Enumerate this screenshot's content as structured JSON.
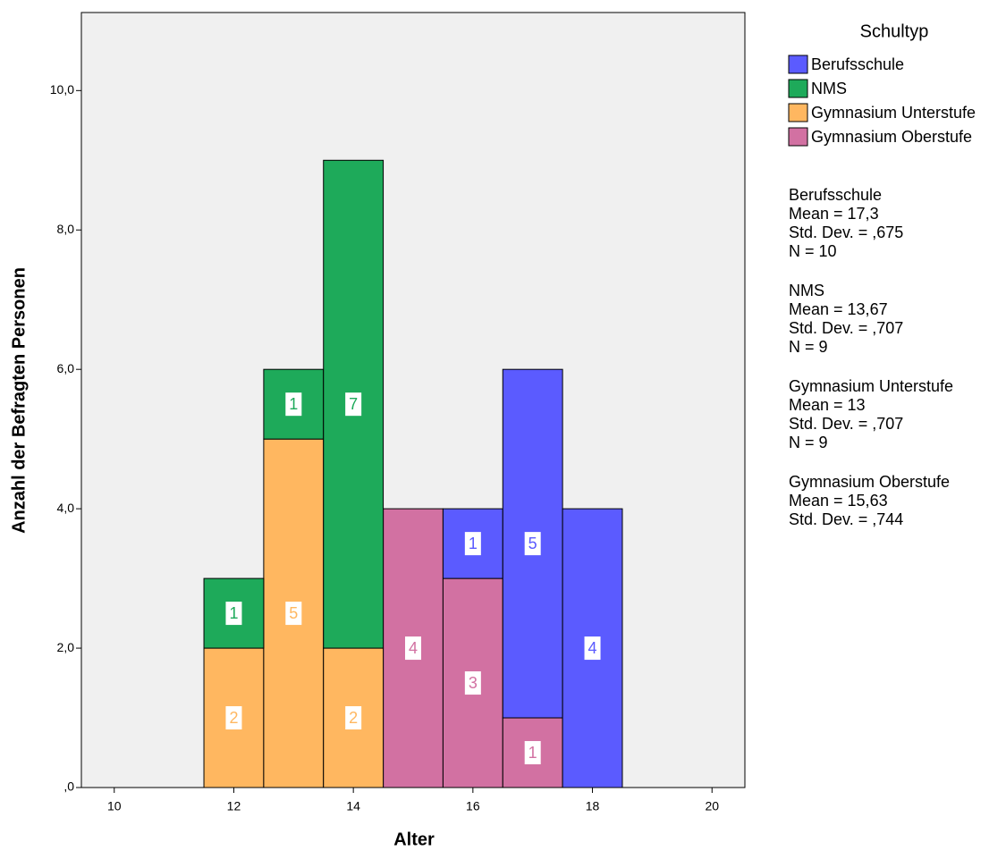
{
  "chart_data": {
    "type": "histogram",
    "x_label": "Alter",
    "y_label": "Anzahl der Befragten Personen",
    "legend_title": "Schultyp",
    "bins": [
      11.5,
      12.5,
      13.5,
      14.5,
      15.5,
      16.5,
      17.5,
      18.5
    ],
    "series": [
      {
        "name": "Berufsschule",
        "color": "#5b5bff",
        "values": [
          0,
          0,
          0,
          0,
          1,
          5,
          4
        ]
      },
      {
        "name": "NMS",
        "color": "#1eaa5a",
        "values": [
          1,
          1,
          7,
          0,
          0,
          0,
          0
        ]
      },
      {
        "name": "Gymnasium Unterstufe",
        "color": "#ffb760",
        "values": [
          2,
          5,
          2,
          0,
          0,
          0,
          0
        ]
      },
      {
        "name": "Gymnasium Oberstufe",
        "color": "#d271a2",
        "values": [
          0,
          0,
          0,
          4,
          3,
          1,
          0
        ]
      }
    ],
    "xlim": [
      9.45,
      20.55
    ],
    "xticks": [
      10,
      12,
      14,
      16,
      18,
      20
    ],
    "ylim": [
      0,
      11.12
    ],
    "yticks": [
      {
        "value": 0,
        "label": ",0"
      },
      {
        "value": 2,
        "label": "2,0"
      },
      {
        "value": 4,
        "label": "4,0"
      },
      {
        "value": 6,
        "label": "6,0"
      },
      {
        "value": 8,
        "label": "8,0"
      },
      {
        "value": 10,
        "label": "10,0"
      }
    ],
    "stats": [
      [
        "Berufsschule",
        "Mean = 17,3",
        "Std. Dev. = ,675",
        "N = 10"
      ],
      [
        "NMS",
        "Mean = 13,67",
        "Std. Dev. = ,707",
        "N = 9"
      ],
      [
        "Gymnasium Unterstufe",
        "Mean = 13",
        "Std. Dev. = ,707",
        "N = 9"
      ],
      [
        "Gymnasium Oberstufe",
        "Mean = 15,63",
        "Std. Dev. = ,744"
      ]
    ]
  }
}
